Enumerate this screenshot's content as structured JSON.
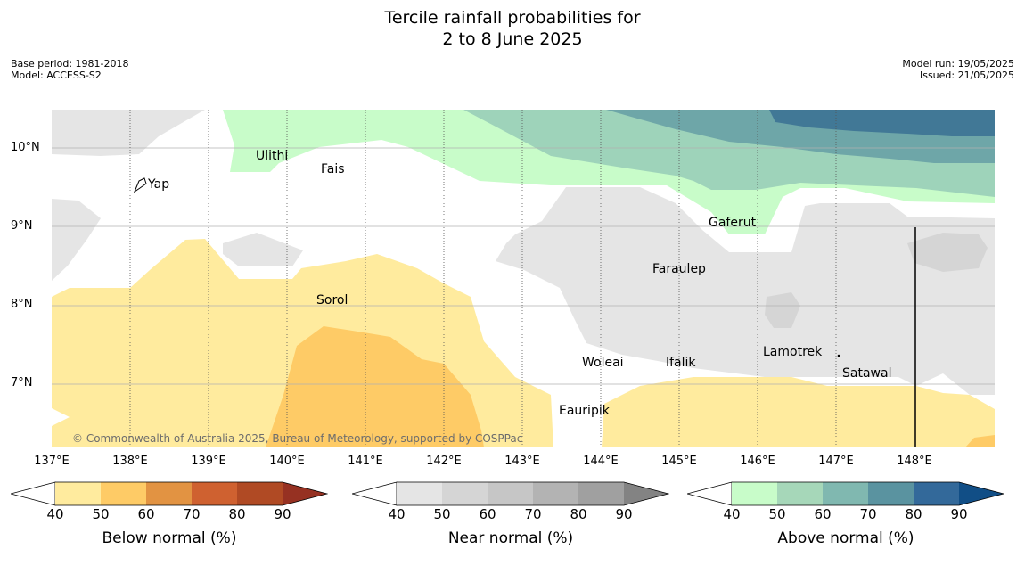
{
  "title_line1": "Tercile rainfall probabilities for",
  "title_line2": "2 to 8 June 2025",
  "meta": {
    "base_period": "Base period: 1981-2018",
    "model": "Model: ACCESS-S2",
    "model_run": "Model run: 19/05/2025",
    "issued": "Issued: 21/05/2025"
  },
  "lat_labels": [
    "10°N",
    "9°N",
    "8°N",
    "7°N"
  ],
  "lon_labels": [
    "137°E",
    "138°E",
    "139°E",
    "140°E",
    "141°E",
    "142°E",
    "143°E",
    "144°E",
    "145°E",
    "146°E",
    "147°E",
    "148°E"
  ],
  "places": [
    "Yap",
    "Ulithi",
    "Fais",
    "Gaferut",
    "Faraulep",
    "Sorol",
    "Woleai",
    "Ifalik",
    "Lamotrek",
    "Satawal",
    "Eauripik"
  ],
  "credit": "© Commonwealth of Australia 2025, Bureau of Meteorology, supported by COSPPac",
  "colorbars": [
    {
      "label": "Below normal (%)",
      "ticks": [
        "40",
        "50",
        "60",
        "70",
        "80",
        "90"
      ],
      "colors": [
        "#ffeb9e",
        "#fecb66",
        "#e29342",
        "#cf6130",
        "#b04a24",
        "#963122"
      ]
    },
    {
      "label": "Near normal (%)",
      "ticks": [
        "40",
        "50",
        "60",
        "70",
        "80",
        "90"
      ],
      "colors": [
        "#e5e5e5",
        "#d5d5d5",
        "#c6c6c6",
        "#b3b3b3",
        "#a0a0a0",
        "#838383"
      ]
    },
    {
      "label": "Above normal (%)",
      "ticks": [
        "40",
        "50",
        "60",
        "70",
        "80",
        "90"
      ],
      "colors": [
        "#c8fcc9",
        "#a6d7b9",
        "#80b8b0",
        "#5a93a0",
        "#33699a",
        "#114e86"
      ]
    }
  ]
}
